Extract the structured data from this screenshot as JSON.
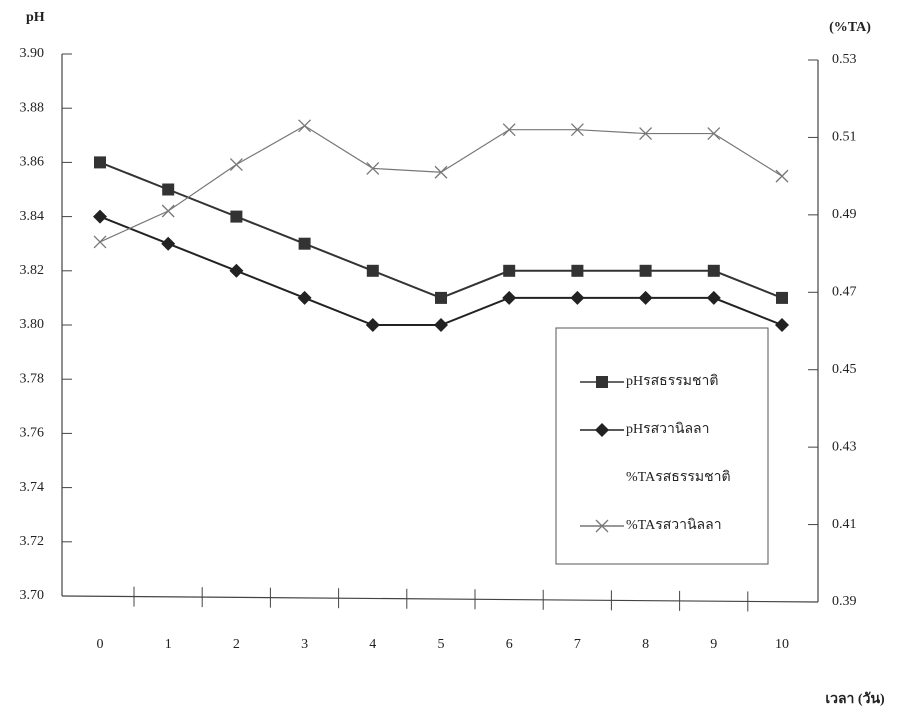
{
  "chart_data": {
    "type": "line",
    "y_label": "pH",
    "y2_label": "(%TA)",
    "x_label": "เวลา (วัน)",
    "categories": [
      "0",
      "1",
      "2",
      "3",
      "4",
      "5",
      "6",
      "7",
      "8",
      "9",
      "10"
    ],
    "ylim": [
      3.7,
      3.9
    ],
    "yticks": [
      {
        "value": 3.7,
        "label": "3.70"
      },
      3.72,
      3.74,
      3.76,
      3.78,
      {
        "value": 3.8,
        "label": "3.80"
      },
      3.82,
      3.84,
      3.86,
      3.88,
      {
        "value": 3.9,
        "label": "3.90"
      }
    ],
    "y2lim": [
      0.39,
      0.53
    ],
    "y2ticks": [
      0.39,
      0.41,
      0.43,
      0.45,
      0.47,
      0.49,
      0.51,
      0.53
    ],
    "legend": "lower right",
    "series": [
      {
        "name": "pHรสธรรมชาติ",
        "color": "#333333",
        "marker": "square",
        "values": [
          3.86,
          3.85,
          3.84,
          3.83,
          3.82,
          3.81,
          3.82,
          3.82,
          3.82,
          3.82,
          3.81
        ]
      },
      {
        "name": "pHรสวานิลลา",
        "color": "#222222",
        "marker": "diamond",
        "values": [
          3.84,
          3.83,
          3.82,
          3.81,
          3.8,
          3.8,
          3.81,
          3.81,
          3.81,
          3.81,
          3.8
        ]
      },
      {
        "name": "%TAรสธรรมชาติ",
        "color": "#bbbbbb",
        "marker": "none",
        "axis": "y2",
        "values": [
          null,
          null,
          null,
          null,
          null,
          null,
          null,
          null,
          null,
          null,
          null
        ]
      },
      {
        "name": "%TAรสวานิลลา",
        "color": "#777777",
        "marker": "x",
        "axis": "y2",
        "values": [
          0.483,
          0.491,
          0.503,
          0.513,
          0.502,
          0.501,
          0.512,
          0.512,
          0.511,
          0.511,
          0.5
        ]
      }
    ]
  }
}
